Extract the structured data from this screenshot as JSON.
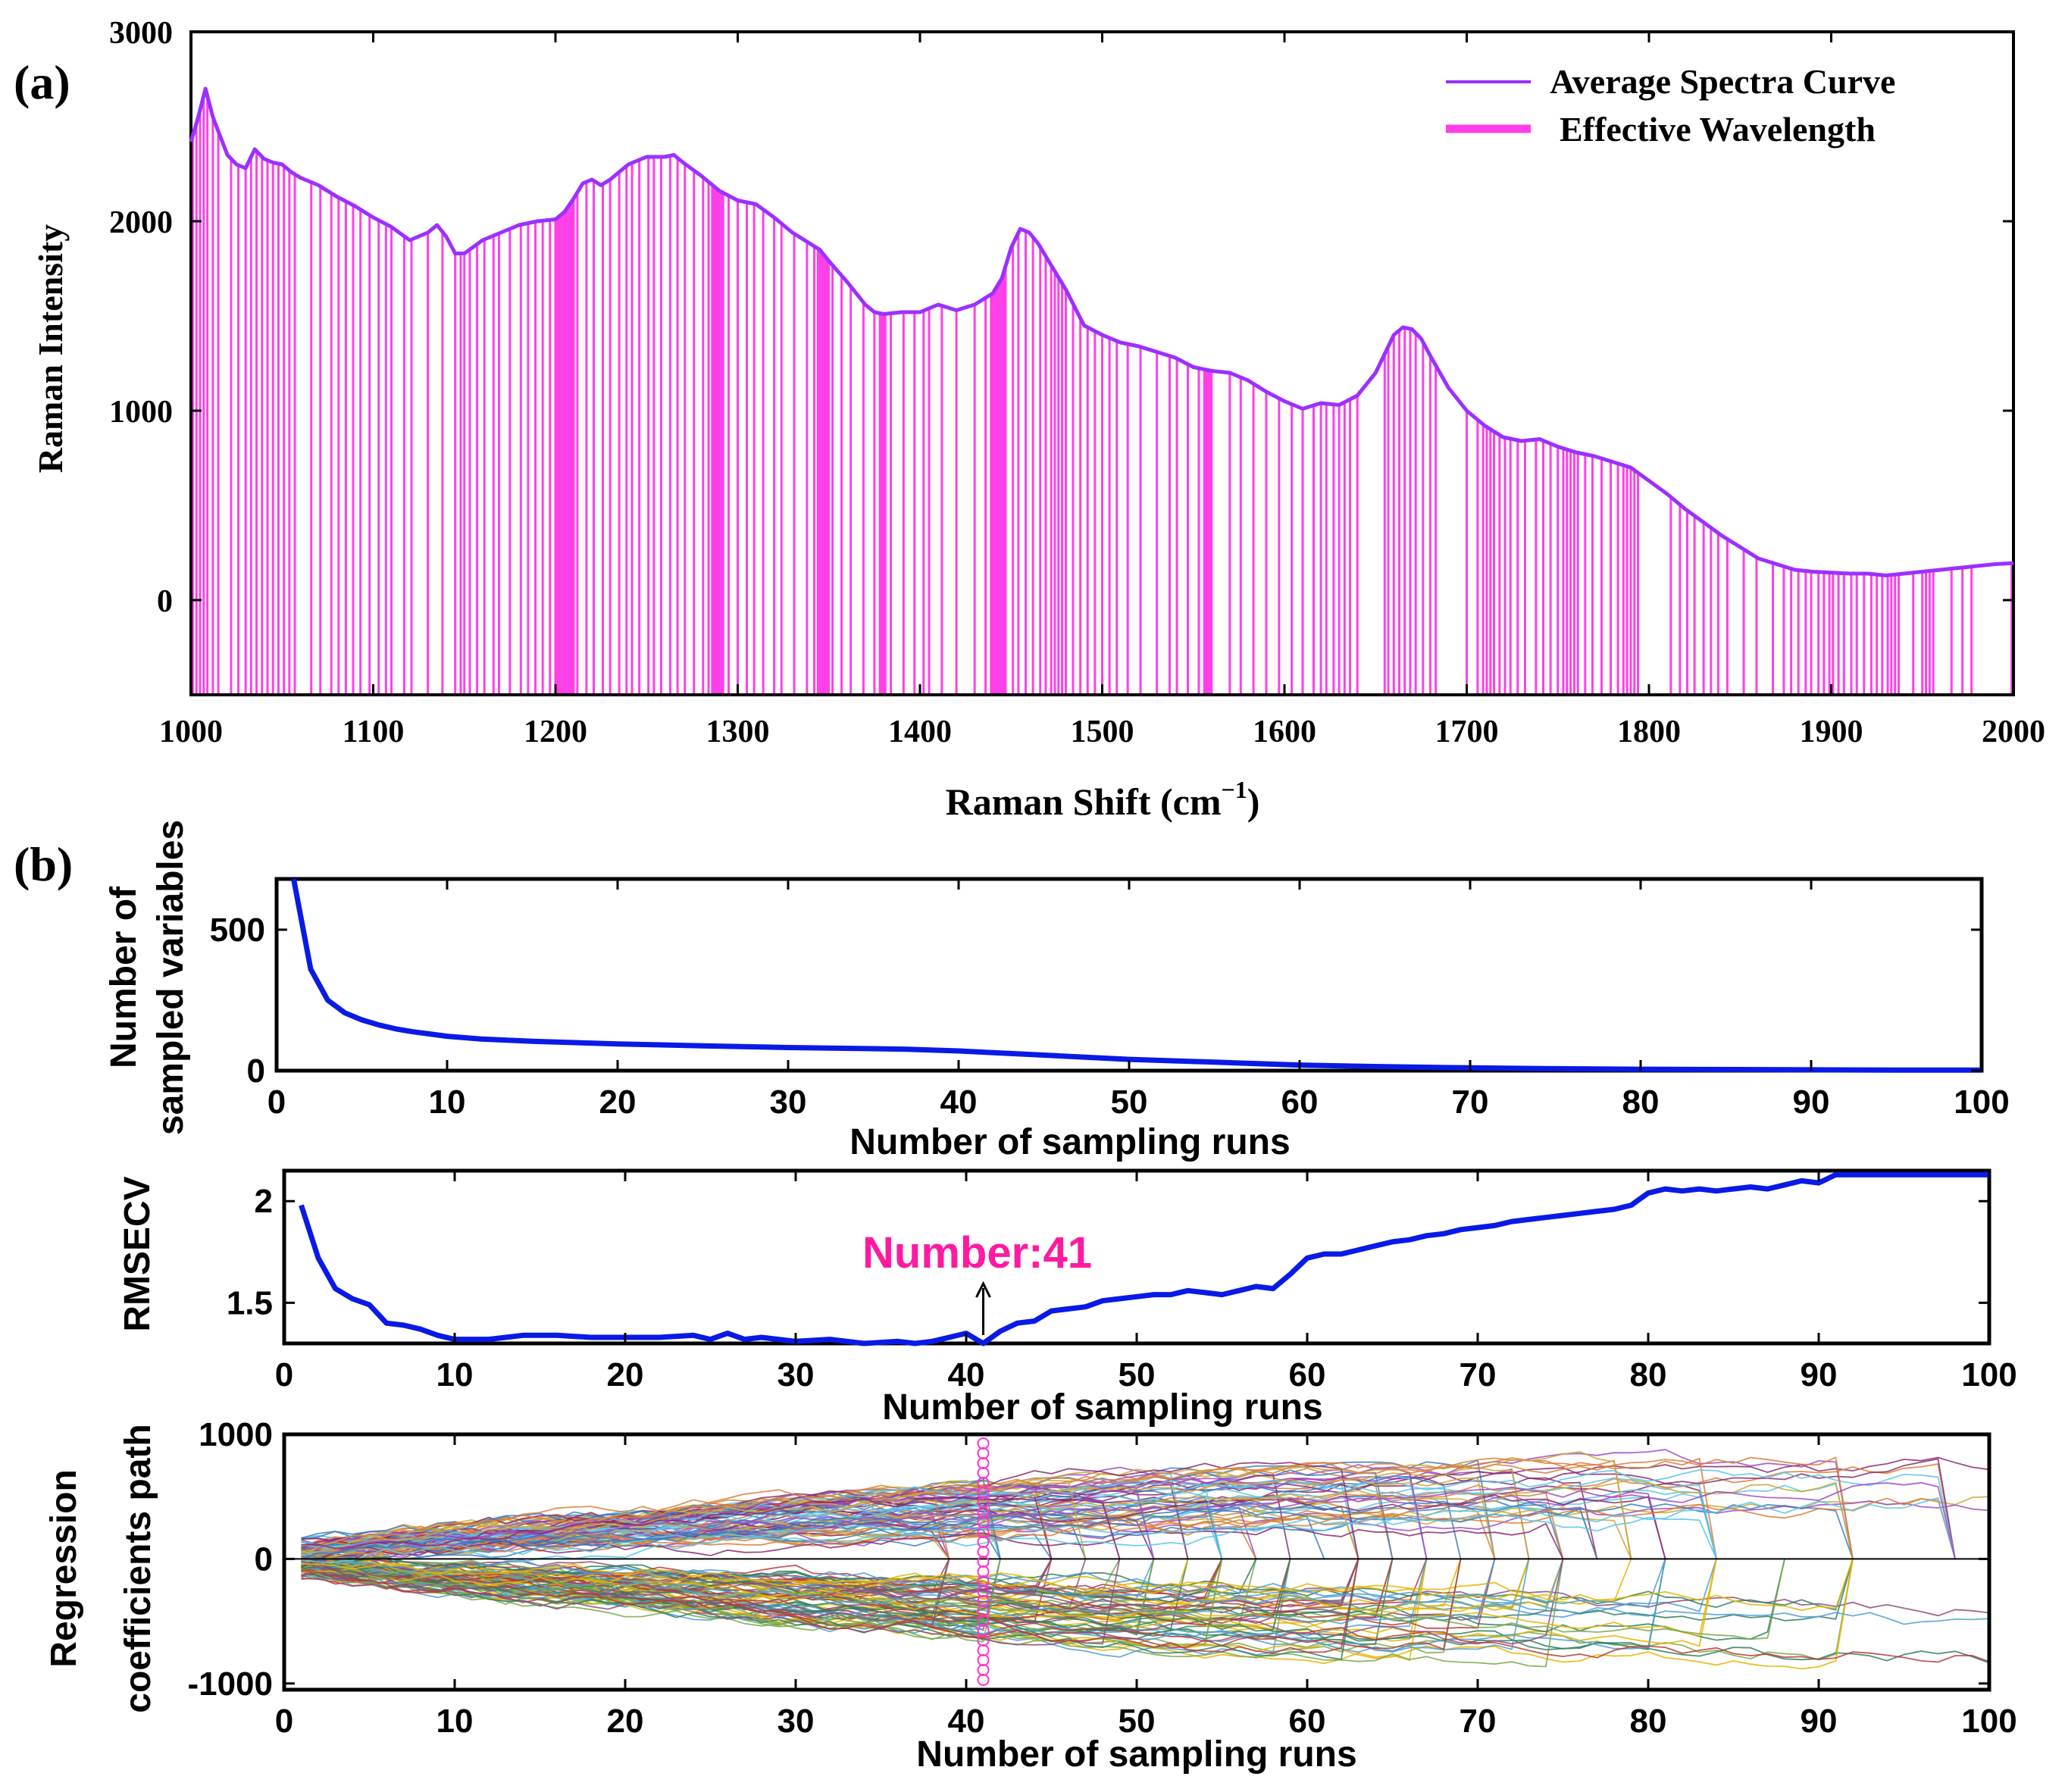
{
  "colors": {
    "spectrum": "#9b30ff",
    "effective": "#ff40e8",
    "blue": "#0a1ae6",
    "annotation": "#ff1aa0",
    "axis": "#000000",
    "marker": "#ff33cc"
  },
  "chart_data": [
    {
      "id": "a",
      "panel_label": "(a)",
      "type": "line",
      "title": "",
      "xlabel": "Raman Shift (cm",
      "xlabel_sup": "−1",
      "xlabel_close": ")",
      "ylabel": "Raman Intensity",
      "xlim": [
        1000,
        2000
      ],
      "ylim": [
        -500,
        3000
      ],
      "xticks": [
        1000,
        1100,
        1200,
        1300,
        1400,
        1500,
        1600,
        1700,
        1800,
        1900,
        2000
      ],
      "yticks": [
        0,
        1000,
        2000,
        3000
      ],
      "legend": [
        {
          "name": "Average Spectra Curve",
          "style": "thin line"
        },
        {
          "name": "Effective Wavelength",
          "style": "thick line"
        }
      ],
      "legend_position": "top-right",
      "series": [
        {
          "name": "Average Spectra Curve",
          "x": [
            1000,
            1004,
            1008,
            1012,
            1016,
            1020,
            1025,
            1030,
            1035,
            1040,
            1045,
            1050,
            1055,
            1060,
            1070,
            1080,
            1090,
            1100,
            1110,
            1120,
            1130,
            1135,
            1140,
            1145,
            1150,
            1160,
            1170,
            1180,
            1190,
            1200,
            1205,
            1210,
            1215,
            1220,
            1225,
            1230,
            1240,
            1250,
            1260,
            1265,
            1270,
            1280,
            1290,
            1300,
            1310,
            1320,
            1330,
            1340,
            1345,
            1350,
            1360,
            1370,
            1375,
            1380,
            1390,
            1400,
            1410,
            1420,
            1430,
            1440,
            1445,
            1450,
            1455,
            1460,
            1465,
            1470,
            1480,
            1490,
            1500,
            1510,
            1520,
            1530,
            1540,
            1550,
            1560,
            1570,
            1580,
            1590,
            1600,
            1610,
            1620,
            1630,
            1640,
            1650,
            1655,
            1660,
            1665,
            1670,
            1675,
            1680,
            1690,
            1700,
            1710,
            1720,
            1730,
            1740,
            1750,
            1760,
            1770,
            1780,
            1790,
            1800,
            1810,
            1820,
            1830,
            1840,
            1850,
            1860,
            1870,
            1880,
            1890,
            1900,
            1910,
            1920,
            1930,
            1940,
            1950,
            1960,
            1970,
            1980,
            1990,
            2000
          ],
          "y": [
            2420,
            2550,
            2700,
            2550,
            2450,
            2350,
            2300,
            2280,
            2380,
            2330,
            2310,
            2300,
            2260,
            2230,
            2190,
            2130,
            2080,
            2020,
            1970,
            1900,
            1940,
            1980,
            1920,
            1830,
            1830,
            1900,
            1940,
            1980,
            2000,
            2010,
            2050,
            2120,
            2200,
            2220,
            2190,
            2220,
            2300,
            2340,
            2340,
            2350,
            2310,
            2240,
            2160,
            2110,
            2090,
            2020,
            1940,
            1880,
            1850,
            1790,
            1680,
            1560,
            1520,
            1510,
            1520,
            1520,
            1560,
            1530,
            1560,
            1620,
            1700,
            1860,
            1960,
            1940,
            1880,
            1800,
            1640,
            1450,
            1400,
            1360,
            1340,
            1310,
            1280,
            1230,
            1210,
            1200,
            1160,
            1100,
            1050,
            1010,
            1040,
            1030,
            1080,
            1200,
            1300,
            1400,
            1440,
            1430,
            1380,
            1290,
            1120,
            1000,
            920,
            860,
            840,
            850,
            810,
            780,
            760,
            730,
            700,
            630,
            560,
            480,
            410,
            340,
            280,
            220,
            190,
            160,
            150,
            145,
            140,
            140,
            130,
            140,
            150,
            160,
            170,
            180,
            190,
            195
          ]
        }
      ],
      "effective_wavelengths": [
        1001,
        1003,
        1005,
        1007,
        1009,
        1012,
        1015,
        1022,
        1026,
        1030,
        1033,
        1036,
        1039,
        1042,
        1045,
        1048,
        1051,
        1054,
        1057,
        1066,
        1071,
        1077,
        1081,
        1085,
        1089,
        1093,
        1098,
        1103,
        1107,
        1110,
        1117,
        1121,
        1130,
        1138,
        1145,
        1148,
        1150,
        1153,
        1157,
        1161,
        1166,
        1169,
        1175,
        1181,
        1185,
        1189,
        1193,
        1197,
        1200,
        1201,
        1202,
        1203,
        1204,
        1205,
        1206,
        1207,
        1208,
        1209,
        1210,
        1212,
        1217,
        1221,
        1226,
        1230,
        1235,
        1239,
        1242,
        1246,
        1251,
        1254,
        1258,
        1263,
        1267,
        1271,
        1276,
        1281,
        1284,
        1286,
        1287,
        1288,
        1289,
        1290,
        1291,
        1292,
        1295,
        1300,
        1305,
        1309,
        1314,
        1320,
        1324,
        1331,
        1338,
        1342,
        1344,
        1345,
        1346,
        1347,
        1348,
        1349,
        1350,
        1352,
        1357,
        1362,
        1369,
        1375,
        1378,
        1379,
        1380,
        1381,
        1384,
        1391,
        1397,
        1402,
        1405,
        1412,
        1420,
        1430,
        1436,
        1439,
        1440,
        1441,
        1442,
        1443,
        1444,
        1445,
        1446,
        1447,
        1451,
        1454,
        1458,
        1462,
        1466,
        1469,
        1472,
        1474,
        1476,
        1478,
        1480,
        1484,
        1488,
        1492,
        1496,
        1500,
        1504,
        1508,
        1514,
        1521,
        1530,
        1537,
        1541,
        1547,
        1553,
        1556,
        1557,
        1558,
        1559,
        1560,
        1570,
        1576,
        1583,
        1590,
        1597,
        1604,
        1610,
        1616,
        1620,
        1623,
        1627,
        1630,
        1633,
        1636,
        1640,
        1655,
        1657,
        1660,
        1663,
        1666,
        1669,
        1672,
        1676,
        1680,
        1683,
        1700,
        1706,
        1709,
        1711,
        1713,
        1715,
        1718,
        1721,
        1724,
        1728,
        1732,
        1738,
        1742,
        1746,
        1750,
        1753,
        1755,
        1757,
        1759,
        1761,
        1765,
        1769,
        1774,
        1779,
        1783,
        1786,
        1788,
        1790,
        1792,
        1794,
        1812,
        1817,
        1821,
        1825,
        1830,
        1834,
        1838,
        1843,
        1852,
        1859,
        1868,
        1874,
        1878,
        1882,
        1886,
        1889,
        1893,
        1896,
        1899,
        1901,
        1904,
        1907,
        1911,
        1914,
        1918,
        1922,
        1925,
        1928,
        1931,
        1933,
        1935,
        1937,
        1945,
        1950,
        1952,
        1954,
        1956,
        1966,
        1972,
        1977,
        1999
      ]
    },
    {
      "id": "b1",
      "panel_label": "(b)",
      "type": "line",
      "xlabel": "Number of sampling runs",
      "ylabel": [
        "Number of",
        "sampled variables"
      ],
      "xlim": [
        0,
        100
      ],
      "ylim": [
        0,
        680
      ],
      "xticks": [
        0,
        10,
        20,
        30,
        40,
        50,
        60,
        70,
        80,
        90,
        100
      ],
      "yticks": [
        0,
        500
      ],
      "series": [
        {
          "name": "Number of sampled variables",
          "x": [
            1,
            2,
            3,
            4,
            5,
            6,
            7,
            8,
            9,
            10,
            12,
            15,
            20,
            25,
            30,
            35,
            37,
            40,
            45,
            50,
            55,
            60,
            65,
            70,
            75,
            80,
            85,
            90,
            95,
            100
          ],
          "y": [
            680,
            360,
            250,
            205,
            180,
            162,
            148,
            138,
            130,
            122,
            112,
            104,
            95,
            88,
            82,
            78,
            76,
            70,
            55,
            40,
            30,
            20,
            14,
            10,
            7,
            5,
            4,
            3,
            2,
            2
          ]
        }
      ]
    },
    {
      "id": "b2",
      "type": "line",
      "xlabel": "Number of sampling runs",
      "ylabel": "RMSECV",
      "xlim": [
        0,
        100
      ],
      "ylim": [
        1.3,
        2.15
      ],
      "xticks": [
        0,
        10,
        20,
        30,
        40,
        50,
        60,
        70,
        80,
        90,
        100
      ],
      "yticks": [
        1.5,
        2
      ],
      "annotation": {
        "text": "Number:41",
        "x": 41
      },
      "series": [
        {
          "name": "RMSECV",
          "x": [
            1,
            2,
            3,
            4,
            5,
            6,
            7,
            8,
            9,
            10,
            11,
            12,
            14,
            16,
            18,
            20,
            22,
            24,
            25,
            26,
            27,
            28,
            30,
            32,
            34,
            36,
            37,
            38,
            39,
            40,
            41,
            42,
            43,
            44,
            45,
            46,
            47,
            48,
            49,
            50,
            51,
            52,
            53,
            54,
            55,
            56,
            57,
            58,
            59,
            60,
            61,
            62,
            63,
            64,
            65,
            66,
            67,
            68,
            69,
            70,
            71,
            72,
            73,
            74,
            75,
            76,
            77,
            78,
            79,
            80,
            81,
            82,
            83,
            84,
            85,
            86,
            87,
            88,
            89,
            90,
            91,
            92,
            93,
            94,
            95,
            96,
            97,
            98,
            99,
            100
          ],
          "y": [
            1.98,
            1.72,
            1.57,
            1.52,
            1.49,
            1.4,
            1.39,
            1.37,
            1.34,
            1.32,
            1.32,
            1.32,
            1.34,
            1.34,
            1.33,
            1.33,
            1.33,
            1.34,
            1.32,
            1.35,
            1.32,
            1.33,
            1.31,
            1.32,
            1.3,
            1.31,
            1.3,
            1.31,
            1.33,
            1.35,
            1.3,
            1.36,
            1.4,
            1.41,
            1.46,
            1.47,
            1.48,
            1.51,
            1.52,
            1.53,
            1.54,
            1.54,
            1.56,
            1.55,
            1.54,
            1.56,
            1.58,
            1.57,
            1.64,
            1.72,
            1.74,
            1.74,
            1.76,
            1.78,
            1.8,
            1.81,
            1.83,
            1.84,
            1.86,
            1.87,
            1.88,
            1.9,
            1.91,
            1.92,
            1.93,
            1.94,
            1.95,
            1.96,
            1.98,
            2.04,
            2.06,
            2.05,
            2.06,
            2.05,
            2.06,
            2.07,
            2.06,
            2.08,
            2.1,
            2.09,
            2.13,
            2.13,
            2.13,
            2.13,
            2.13,
            2.13,
            2.13,
            2.13,
            2.13,
            2.13
          ]
        }
      ]
    },
    {
      "id": "b3",
      "type": "line",
      "xlabel": "Number of sampling runs",
      "ylabel": [
        "Regression",
        "coefficients path"
      ],
      "xlim": [
        0,
        100
      ],
      "ylim": [
        -1050,
        1000
      ],
      "xticks": [
        0,
        10,
        20,
        30,
        40,
        50,
        60,
        70,
        80,
        90,
        100
      ],
      "yticks": [
        -1000,
        0,
        1000
      ],
      "marker_run": 41,
      "paths": {
        "count": 150,
        "start_range": [
          -250,
          250
        ],
        "end_runs": [
          38,
          41,
          44,
          46,
          48,
          50,
          52,
          54,
          56,
          58,
          60,
          62,
          64,
          66,
          68,
          70,
          72,
          74,
          76,
          78,
          80,
          83,
          87,
          91,
          97,
          100
        ],
        "palette": [
          "#3b7fbf",
          "#e6b400",
          "#8a2d6e",
          "#7aa84a",
          "#5cc6e6",
          "#b83a3a",
          "#d97f3a",
          "#2f7f5e",
          "#a04bc4",
          "#4e9fd1",
          "#caa83a",
          "#8c4f7a"
        ]
      }
    }
  ]
}
